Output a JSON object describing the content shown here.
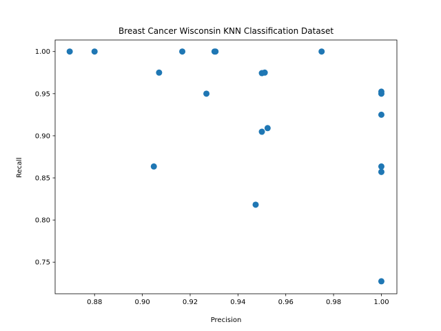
{
  "chart_data": {
    "type": "scatter",
    "title": "Breast Cancer Wisconsin KNN Classification Dataset",
    "xlabel": "Precision",
    "ylabel": "Recall",
    "xlim": [
      0.8635,
      1.0065
    ],
    "ylim": [
      0.7125,
      1.0137
    ],
    "xticks": [
      0.88,
      0.9,
      0.92,
      0.94,
      0.96,
      0.98,
      1.0
    ],
    "xtick_labels": [
      "0.88",
      "0.90",
      "0.92",
      "0.94",
      "0.96",
      "0.98",
      "1.00"
    ],
    "yticks": [
      0.75,
      0.8,
      0.85,
      0.9,
      0.95,
      1.0
    ],
    "ytick_labels": [
      "0.75",
      "0.80",
      "0.85",
      "0.90",
      "0.95",
      "1.00"
    ],
    "grid": false,
    "marker_color": "#1f77b4",
    "points": [
      {
        "x": 0.8696,
        "y": 1.0
      },
      {
        "x": 0.88,
        "y": 1.0
      },
      {
        "x": 0.9167,
        "y": 1.0
      },
      {
        "x": 0.9302,
        "y": 1.0
      },
      {
        "x": 0.9306,
        "y": 1.0
      },
      {
        "x": 0.975,
        "y": 1.0
      },
      {
        "x": 0.907,
        "y": 0.975
      },
      {
        "x": 0.95,
        "y": 0.9744
      },
      {
        "x": 0.9512,
        "y": 0.975
      },
      {
        "x": 0.9268,
        "y": 0.95
      },
      {
        "x": 1.0,
        "y": 0.9524
      },
      {
        "x": 1.0,
        "y": 0.95
      },
      {
        "x": 1.0,
        "y": 0.925
      },
      {
        "x": 0.95,
        "y": 0.9048
      },
      {
        "x": 0.9524,
        "y": 0.9091
      },
      {
        "x": 0.9048,
        "y": 0.8636
      },
      {
        "x": 1.0,
        "y": 0.8636
      },
      {
        "x": 1.0,
        "y": 0.8571
      },
      {
        "x": 0.9474,
        "y": 0.8182
      },
      {
        "x": 1.0,
        "y": 0.7273
      }
    ]
  }
}
